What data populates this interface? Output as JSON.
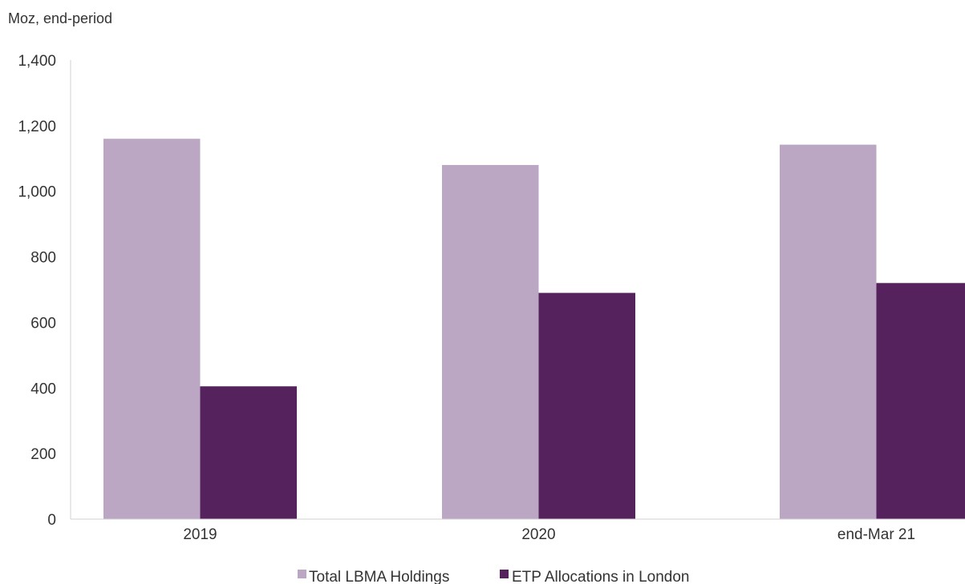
{
  "chart_data": {
    "type": "bar",
    "unit_label": "Moz, end-period",
    "categories": [
      "2019",
      "2020",
      "end-Mar 21"
    ],
    "series": [
      {
        "name": "Total LBMA Holdings",
        "color": "#BBA7C4",
        "values": [
          1160,
          1080,
          1142
        ]
      },
      {
        "name": "ETP Allocations in London",
        "color": "#56225E",
        "values": [
          405,
          690,
          720
        ]
      }
    ],
    "y_ticks": [
      "0",
      "200",
      "400",
      "600",
      "800",
      "1,000",
      "1,200",
      "1,400"
    ],
    "ylim": [
      0,
      1400
    ],
    "grid": false,
    "legend_position": "bottom-center"
  }
}
